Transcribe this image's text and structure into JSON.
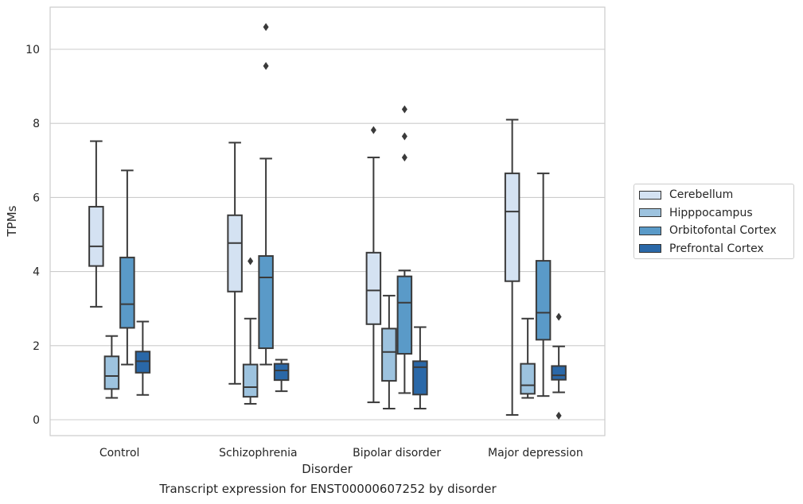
{
  "caption": "Transcript expression for ENST00000607252 by disorder",
  "chart_data": {
    "type": "box",
    "xlabel": "Disorder",
    "ylabel": "TPMs",
    "ylim": [
      -0.4,
      11.1
    ],
    "yticks": [
      0,
      2,
      4,
      6,
      8,
      10
    ],
    "grid": "horizontal",
    "legend_position": "right",
    "categories": [
      "Control",
      "Schizophrenia",
      "Bipolar disorder",
      "Major depression"
    ],
    "series": [
      {
        "name": "Cerebellum",
        "color": "#d4e2f2",
        "boxes": [
          {
            "whisker_low": 3.05,
            "q1": 4.15,
            "median": 4.68,
            "q3": 5.75,
            "whisker_high": 7.52,
            "outliers": []
          },
          {
            "whisker_low": 0.97,
            "q1": 3.46,
            "median": 4.77,
            "q3": 5.52,
            "whisker_high": 7.48,
            "outliers": []
          },
          {
            "whisker_low": 0.47,
            "q1": 2.58,
            "median": 3.49,
            "q3": 4.51,
            "whisker_high": 7.08,
            "outliers": [
              7.82
            ]
          },
          {
            "whisker_low": 0.13,
            "q1": 3.74,
            "median": 5.62,
            "q3": 6.65,
            "whisker_high": 8.1,
            "outliers": []
          }
        ]
      },
      {
        "name": "Hipppocampus",
        "color": "#9dc3df",
        "boxes": [
          {
            "whisker_low": 0.59,
            "q1": 0.83,
            "median": 1.18,
            "q3": 1.71,
            "whisker_high": 2.26,
            "outliers": []
          },
          {
            "whisker_low": 0.43,
            "q1": 0.62,
            "median": 0.88,
            "q3": 1.49,
            "whisker_high": 2.73,
            "outliers": [
              4.28
            ]
          },
          {
            "whisker_low": 0.3,
            "q1": 1.05,
            "median": 1.83,
            "q3": 2.46,
            "whisker_high": 3.35,
            "outliers": []
          },
          {
            "whisker_low": 0.59,
            "q1": 0.7,
            "median": 0.93,
            "q3": 1.51,
            "whisker_high": 2.73,
            "outliers": []
          }
        ]
      },
      {
        "name": "Orbitofontal Cortex",
        "color": "#5a9ac8",
        "boxes": [
          {
            "whisker_low": 1.49,
            "q1": 2.48,
            "median": 3.12,
            "q3": 4.38,
            "whisker_high": 6.73,
            "outliers": []
          },
          {
            "whisker_low": 1.49,
            "q1": 1.93,
            "median": 3.84,
            "q3": 4.42,
            "whisker_high": 7.05,
            "outliers": [
              10.6,
              9.55
            ]
          },
          {
            "whisker_low": 0.72,
            "q1": 1.78,
            "median": 3.16,
            "q3": 3.87,
            "whisker_high": 4.03,
            "outliers": [
              8.38,
              7.65,
              7.08
            ]
          },
          {
            "whisker_low": 0.64,
            "q1": 2.16,
            "median": 2.89,
            "q3": 4.29,
            "whisker_high": 6.65,
            "outliers": []
          }
        ]
      },
      {
        "name": "Prefrontal Cortex",
        "color": "#2a68a8",
        "boxes": [
          {
            "whisker_low": 0.67,
            "q1": 1.27,
            "median": 1.58,
            "q3": 1.84,
            "whisker_high": 2.65,
            "outliers": []
          },
          {
            "whisker_low": 0.77,
            "q1": 1.07,
            "median": 1.33,
            "q3": 1.51,
            "whisker_high": 1.62,
            "outliers": []
          },
          {
            "whisker_low": 0.3,
            "q1": 0.68,
            "median": 1.42,
            "q3": 1.58,
            "whisker_high": 2.5,
            "outliers": []
          },
          {
            "whisker_low": 0.74,
            "q1": 1.08,
            "median": 1.2,
            "q3": 1.45,
            "whisker_high": 1.98,
            "outliers": [
              2.78,
              0.11
            ]
          }
        ]
      }
    ]
  }
}
